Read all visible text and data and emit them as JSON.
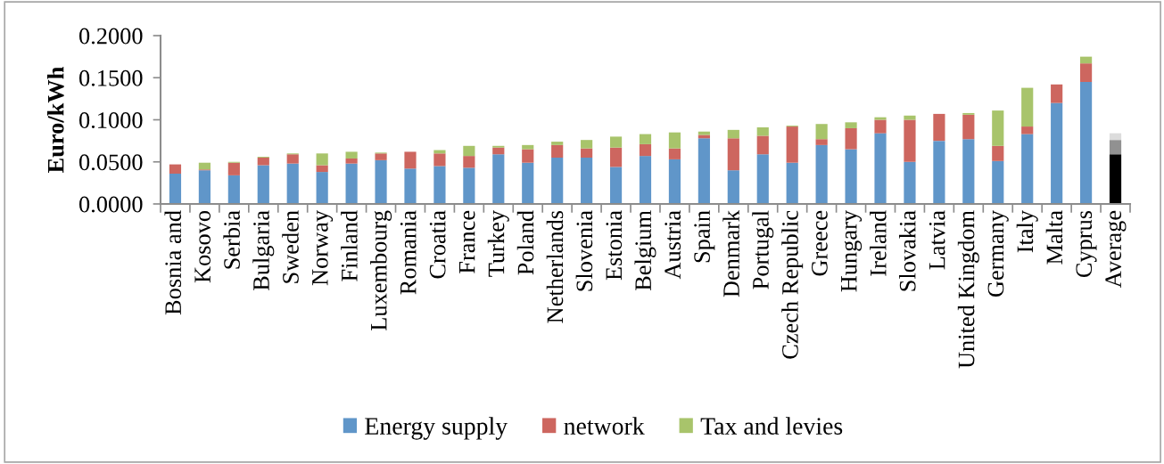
{
  "chart_data": {
    "type": "bar",
    "stacked": true,
    "ylabel": "Euro/kWh",
    "categories": [
      "Bosnia and",
      "Kosovo",
      "Serbia",
      "Bulgaria",
      "Sweden",
      "Norway",
      "Finland",
      "Luxembourg",
      "Romania",
      "Croatia",
      "France",
      "Turkey",
      "Poland",
      "Netherlands",
      "Slovenia",
      "Estonia",
      "Belgium",
      "Austria",
      "Spain",
      "Denmark",
      "Portugal",
      "Czech Republic",
      "Greece",
      "Hungary",
      "Ireland",
      "Slovakia",
      "Latvia",
      "United Kingdom",
      "Germany",
      "Italy",
      "Malta",
      "Cyprus",
      "Average"
    ],
    "series": [
      {
        "name": "Energy supply",
        "color": "#6096c9",
        "colors": [
          "#6096c9",
          "#6096c9",
          "#6096c9",
          "#6096c9",
          "#6096c9",
          "#6096c9",
          "#6096c9",
          "#6096c9",
          "#6096c9",
          "#6096c9",
          "#6096c9",
          "#6096c9",
          "#6096c9",
          "#6096c9",
          "#6096c9",
          "#6096c9",
          "#6096c9",
          "#6096c9",
          "#6096c9",
          "#6096c9",
          "#6096c9",
          "#6096c9",
          "#6096c9",
          "#6096c9",
          "#6096c9",
          "#6096c9",
          "#6096c9",
          "#6096c9",
          "#6096c9",
          "#6096c9",
          "#6096c9",
          "#6096c9",
          "#000000"
        ],
        "values": [
          0.036,
          0.04,
          0.034,
          0.046,
          0.048,
          0.038,
          0.048,
          0.052,
          0.042,
          0.045,
          0.043,
          0.059,
          0.049,
          0.055,
          0.055,
          0.044,
          0.057,
          0.053,
          0.078,
          0.04,
          0.059,
          0.049,
          0.07,
          0.065,
          0.084,
          0.05,
          0.075,
          0.077,
          0.051,
          0.083,
          0.12,
          0.145,
          0.059
        ]
      },
      {
        "name": "network",
        "color": "#cd665f",
        "colors": [
          "#cd665f",
          "#cd665f",
          "#cd665f",
          "#cd665f",
          "#cd665f",
          "#cd665f",
          "#cd665f",
          "#cd665f",
          "#cd665f",
          "#cd665f",
          "#cd665f",
          "#cd665f",
          "#cd665f",
          "#cd665f",
          "#cd665f",
          "#cd665f",
          "#cd665f",
          "#cd665f",
          "#cd665f",
          "#cd665f",
          "#cd665f",
          "#cd665f",
          "#cd665f",
          "#cd665f",
          "#cd665f",
          "#cd665f",
          "#cd665f",
          "#cd665f",
          "#cd665f",
          "#cd665f",
          "#cd665f",
          "#cd665f",
          "#919191"
        ],
        "values": [
          0.011,
          0.001,
          0.015,
          0.009,
          0.011,
          0.008,
          0.006,
          0.008,
          0.02,
          0.015,
          0.014,
          0.008,
          0.016,
          0.015,
          0.011,
          0.023,
          0.014,
          0.013,
          0.004,
          0.038,
          0.022,
          0.043,
          0.007,
          0.025,
          0.016,
          0.05,
          0.032,
          0.029,
          0.018,
          0.009,
          0.022,
          0.022,
          0.017
        ]
      },
      {
        "name": "Tax and levies",
        "color": "#a8c46b",
        "colors": [
          "#a8c46b",
          "#a8c46b",
          "#a8c46b",
          "#a8c46b",
          "#a8c46b",
          "#a8c46b",
          "#a8c46b",
          "#a8c46b",
          "#a8c46b",
          "#a8c46b",
          "#a8c46b",
          "#a8c46b",
          "#a8c46b",
          "#a8c46b",
          "#a8c46b",
          "#a8c46b",
          "#a8c46b",
          "#a8c46b",
          "#a8c46b",
          "#a8c46b",
          "#a8c46b",
          "#a8c46b",
          "#a8c46b",
          "#a8c46b",
          "#a8c46b",
          "#a8c46b",
          "#a8c46b",
          "#a8c46b",
          "#a8c46b",
          "#a8c46b",
          "#a8c46b",
          "#a8c46b",
          "#dcdcdc"
        ],
        "values": [
          null,
          0.008,
          0.001,
          0.001,
          0.001,
          0.014,
          0.008,
          0.001,
          null,
          0.004,
          0.012,
          0.002,
          0.005,
          0.004,
          0.01,
          0.013,
          0.012,
          0.019,
          0.004,
          0.01,
          0.01,
          0.001,
          0.018,
          0.007,
          0.003,
          0.005,
          null,
          0.002,
          0.042,
          0.046,
          null,
          0.008,
          0.008
        ]
      }
    ],
    "ylim": [
      0,
      0.2
    ],
    "yticks": [
      {
        "value": 0,
        "label": "0.0000"
      },
      {
        "value": 0.05,
        "label": "0.0500"
      },
      {
        "value": 0.1,
        "label": "0.1000"
      },
      {
        "value": 0.15,
        "label": "0.1500"
      },
      {
        "value": 0.2,
        "label": "0.2000"
      }
    ],
    "grid": false,
    "legend": "bottom"
  }
}
